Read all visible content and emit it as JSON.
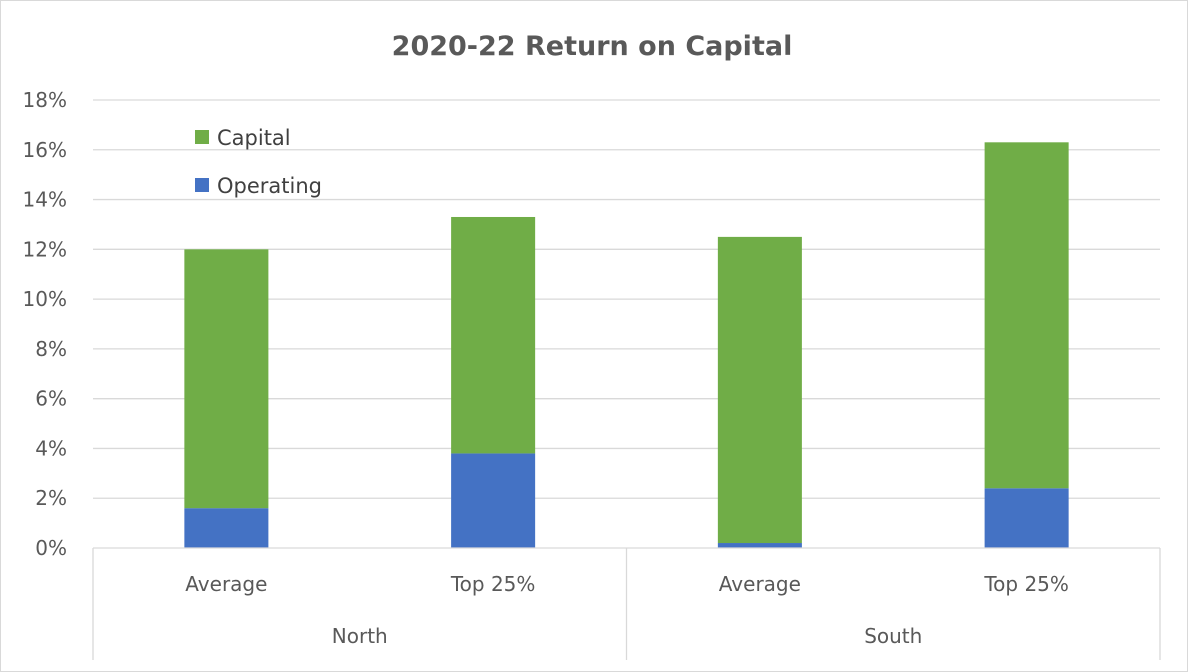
{
  "chart_data": {
    "type": "bar",
    "stacked": true,
    "title": "2020-22 Return on Capital",
    "xlabel": "",
    "ylabel": "",
    "ylim": [
      0,
      18
    ],
    "yticks": [
      "0%",
      "2%",
      "4%",
      "6%",
      "8%",
      "10%",
      "12%",
      "14%",
      "16%",
      "18%"
    ],
    "ytick_values": [
      0,
      2,
      4,
      6,
      8,
      10,
      12,
      14,
      16,
      18
    ],
    "grid": true,
    "legend_position": "top-left",
    "groups": [
      {
        "label": "North",
        "categories": [
          "Average",
          "Top 25%"
        ]
      },
      {
        "label": "South",
        "categories": [
          "Average",
          "Top 25%"
        ]
      }
    ],
    "categories": [
      "Average",
      "Top 25%",
      "Average",
      "Top 25%"
    ],
    "series": [
      {
        "name": "Operating",
        "color": "#4472c4",
        "values": [
          1.6,
          3.8,
          0.2,
          2.4
        ]
      },
      {
        "name": "Capital",
        "color": "#70ad47",
        "values": [
          10.4,
          9.5,
          12.3,
          13.9
        ]
      }
    ],
    "legend": [
      {
        "name": "Capital",
        "color": "#70ad47"
      },
      {
        "name": "Operating",
        "color": "#4472c4"
      }
    ]
  }
}
